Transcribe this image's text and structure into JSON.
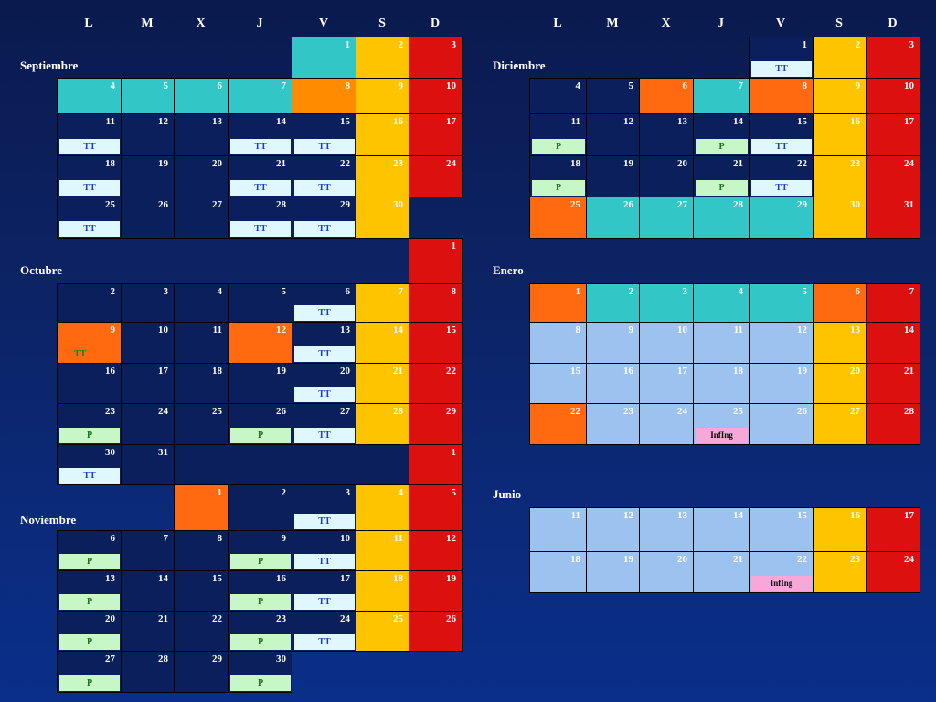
{
  "day_headers": [
    "L",
    "M",
    "X",
    "J",
    "V",
    "S",
    "D"
  ],
  "palette": {
    "navy": "#0a1f5c",
    "teal": "#33c6c6",
    "orange": "#ff6a10",
    "amber": "#ff8c00",
    "yellow": "#ffc400",
    "red": "#dd1010",
    "light": "#9cc3f0"
  },
  "left": {
    "months": [
      {
        "label": "Septiembre",
        "row": 1
      },
      {
        "label": "Octubre",
        "row": 6
      },
      {
        "label": "Noviembre",
        "row": 12
      }
    ],
    "rows": [
      [
        null,
        null,
        null,
        null,
        {
          "d": "1",
          "c": "teal"
        },
        {
          "d": "2",
          "c": "yellow"
        },
        {
          "d": "3",
          "c": "red"
        }
      ],
      [
        {
          "d": "4",
          "c": "teal"
        },
        {
          "d": "5",
          "c": "teal"
        },
        {
          "d": "6",
          "c": "teal"
        },
        {
          "d": "7",
          "c": "teal"
        },
        {
          "d": "8",
          "c": "amber"
        },
        {
          "d": "9",
          "c": "yellow"
        },
        {
          "d": "10",
          "c": "red"
        }
      ],
      [
        {
          "d": "11",
          "c": "navy",
          "t": "TT"
        },
        {
          "d": "12",
          "c": "navy"
        },
        {
          "d": "13",
          "c": "navy"
        },
        {
          "d": "14",
          "c": "navy",
          "t": "TT"
        },
        {
          "d": "15",
          "c": "navy",
          "t": "TT"
        },
        {
          "d": "16",
          "c": "yellow"
        },
        {
          "d": "17",
          "c": "red"
        }
      ],
      [
        {
          "d": "18",
          "c": "navy",
          "t": "TT"
        },
        {
          "d": "19",
          "c": "navy"
        },
        {
          "d": "20",
          "c": "navy"
        },
        {
          "d": "21",
          "c": "navy",
          "t": "TT"
        },
        {
          "d": "22",
          "c": "navy",
          "t": "TT"
        },
        {
          "d": "23",
          "c": "yellow"
        },
        {
          "d": "24",
          "c": "red"
        }
      ],
      [
        {
          "d": "25",
          "c": "navy",
          "t": "TT"
        },
        {
          "d": "26",
          "c": "navy"
        },
        {
          "d": "27",
          "c": "navy"
        },
        {
          "d": "28",
          "c": "navy",
          "t": "TT"
        },
        {
          "d": "29",
          "c": "navy",
          "t": "TT"
        },
        {
          "d": "30",
          "c": "yellow"
        },
        null
      ],
      [
        null,
        null,
        null,
        null,
        null,
        null,
        {
          "d": "1",
          "c": "red"
        }
      ],
      [
        {
          "d": "2",
          "c": "navy"
        },
        {
          "d": "3",
          "c": "navy"
        },
        {
          "d": "4",
          "c": "navy"
        },
        {
          "d": "5",
          "c": "navy"
        },
        {
          "d": "6",
          "c": "navy",
          "t": "TT"
        },
        {
          "d": "7",
          "c": "yellow"
        },
        {
          "d": "8",
          "c": "red"
        }
      ],
      [
        {
          "d": "9",
          "c": "orange",
          "t": "TT",
          "tt": "X"
        },
        {
          "d": "10",
          "c": "navy"
        },
        {
          "d": "11",
          "c": "navy"
        },
        {
          "d": "12",
          "c": "orange"
        },
        {
          "d": "13",
          "c": "navy",
          "t": "TT"
        },
        {
          "d": "14",
          "c": "yellow"
        },
        {
          "d": "15",
          "c": "red"
        }
      ],
      [
        {
          "d": "16",
          "c": "navy"
        },
        {
          "d": "17",
          "c": "navy"
        },
        {
          "d": "18",
          "c": "navy"
        },
        {
          "d": "19",
          "c": "navy"
        },
        {
          "d": "20",
          "c": "navy",
          "t": "TT"
        },
        {
          "d": "21",
          "c": "yellow"
        },
        {
          "d": "22",
          "c": "red"
        }
      ],
      [
        {
          "d": "23",
          "c": "navy",
          "t": "P"
        },
        {
          "d": "24",
          "c": "navy"
        },
        {
          "d": "25",
          "c": "navy"
        },
        {
          "d": "26",
          "c": "navy",
          "t": "P"
        },
        {
          "d": "27",
          "c": "navy",
          "t": "TT"
        },
        {
          "d": "28",
          "c": "yellow"
        },
        {
          "d": "29",
          "c": "red"
        }
      ],
      [
        {
          "d": "30",
          "c": "navy",
          "t": "TT"
        },
        {
          "d": "31",
          "c": "navy"
        },
        {
          "span": 4,
          "c": "navy"
        },
        null,
        null,
        null,
        {
          "d": "1",
          "c": "red"
        }
      ],
      [
        null,
        null,
        {
          "d": "1",
          "c": "orange"
        },
        {
          "d": "2",
          "c": "navy"
        },
        {
          "d": "3",
          "c": "navy",
          "t": "TT"
        },
        {
          "d": "4",
          "c": "yellow"
        },
        {
          "d": "5",
          "c": "red"
        }
      ],
      [
        {
          "d": "6",
          "c": "navy",
          "t": "P"
        },
        {
          "d": "7",
          "c": "navy"
        },
        {
          "d": "8",
          "c": "navy"
        },
        {
          "d": "9",
          "c": "navy",
          "t": "P"
        },
        {
          "d": "10",
          "c": "navy",
          "t": "TT"
        },
        {
          "d": "11",
          "c": "yellow"
        },
        {
          "d": "12",
          "c": "red"
        }
      ],
      [
        {
          "d": "13",
          "c": "navy",
          "t": "P"
        },
        {
          "d": "14",
          "c": "navy"
        },
        {
          "d": "15",
          "c": "navy"
        },
        {
          "d": "16",
          "c": "navy",
          "t": "P"
        },
        {
          "d": "17",
          "c": "navy",
          "t": "TT"
        },
        {
          "d": "18",
          "c": "yellow"
        },
        {
          "d": "19",
          "c": "red"
        }
      ],
      [
        {
          "d": "20",
          "c": "navy",
          "t": "P"
        },
        {
          "d": "21",
          "c": "navy"
        },
        {
          "d": "22",
          "c": "navy"
        },
        {
          "d": "23",
          "c": "navy",
          "t": "P"
        },
        {
          "d": "24",
          "c": "navy",
          "t": "TT"
        },
        {
          "d": "25",
          "c": "yellow"
        },
        {
          "d": "26",
          "c": "red"
        }
      ],
      [
        {
          "d": "27",
          "c": "navy",
          "t": "P"
        },
        {
          "d": "28",
          "c": "navy"
        },
        {
          "d": "29",
          "c": "navy"
        },
        {
          "d": "30",
          "c": "navy",
          "t": "P"
        },
        null,
        null,
        null
      ]
    ]
  },
  "right": {
    "months": [
      {
        "label": "Diciembre",
        "row": 1
      },
      {
        "label": "Enero",
        "row": 6
      },
      {
        "label": "Junio",
        "row": 11
      }
    ],
    "rows": [
      [
        null,
        null,
        null,
        null,
        {
          "d": "1",
          "c": "navy",
          "t": "TT"
        },
        {
          "d": "2",
          "c": "yellow"
        },
        {
          "d": "3",
          "c": "red"
        }
      ],
      [
        {
          "d": "4",
          "c": "navy"
        },
        {
          "d": "5",
          "c": "navy"
        },
        {
          "d": "6",
          "c": "orange"
        },
        {
          "d": "7",
          "c": "teal"
        },
        {
          "d": "8",
          "c": "orange"
        },
        {
          "d": "9",
          "c": "yellow"
        },
        {
          "d": "10",
          "c": "red"
        }
      ],
      [
        {
          "d": "11",
          "c": "navy",
          "t": "P"
        },
        {
          "d": "12",
          "c": "navy"
        },
        {
          "d": "13",
          "c": "navy"
        },
        {
          "d": "14",
          "c": "navy",
          "t": "P"
        },
        {
          "d": "15",
          "c": "navy",
          "t": "TT"
        },
        {
          "d": "16",
          "c": "yellow"
        },
        {
          "d": "17",
          "c": "red"
        }
      ],
      [
        {
          "d": "18",
          "c": "navy",
          "t": "P"
        },
        {
          "d": "19",
          "c": "navy"
        },
        {
          "d": "20",
          "c": "navy"
        },
        {
          "d": "21",
          "c": "navy",
          "t": "P"
        },
        {
          "d": "22",
          "c": "navy",
          "t": "TT"
        },
        {
          "d": "23",
          "c": "yellow"
        },
        {
          "d": "24",
          "c": "red"
        }
      ],
      [
        {
          "d": "25",
          "c": "orange"
        },
        {
          "d": "26",
          "c": "teal"
        },
        {
          "d": "27",
          "c": "teal"
        },
        {
          "d": "28",
          "c": "teal"
        },
        {
          "d": "29",
          "c": "teal"
        },
        {
          "d": "30",
          "c": "yellow"
        },
        {
          "d": "31",
          "c": "red"
        }
      ],
      [
        null,
        null,
        null,
        null,
        null,
        null,
        null
      ],
      [
        {
          "d": "1",
          "c": "orange"
        },
        {
          "d": "2",
          "c": "teal"
        },
        {
          "d": "3",
          "c": "teal"
        },
        {
          "d": "4",
          "c": "teal"
        },
        {
          "d": "5",
          "c": "teal"
        },
        {
          "d": "6",
          "c": "orange"
        },
        {
          "d": "7",
          "c": "red"
        }
      ],
      [
        {
          "d": "8",
          "c": "light"
        },
        {
          "d": "9",
          "c": "light"
        },
        {
          "d": "10",
          "c": "light"
        },
        {
          "d": "11",
          "c": "light"
        },
        {
          "d": "12",
          "c": "light"
        },
        {
          "d": "13",
          "c": "yellow"
        },
        {
          "d": "14",
          "c": "red"
        }
      ],
      [
        {
          "d": "15",
          "c": "light"
        },
        {
          "d": "16",
          "c": "light"
        },
        {
          "d": "17",
          "c": "light"
        },
        {
          "d": "18",
          "c": "light"
        },
        {
          "d": "19",
          "c": "light"
        },
        {
          "d": "20",
          "c": "yellow"
        },
        {
          "d": "21",
          "c": "red"
        }
      ],
      [
        {
          "d": "22",
          "c": "orange"
        },
        {
          "d": "23",
          "c": "light"
        },
        {
          "d": "24",
          "c": "light"
        },
        {
          "d": "25",
          "c": "light",
          "t": "InfIng"
        },
        {
          "d": "26",
          "c": "light"
        },
        {
          "d": "27",
          "c": "yellow"
        },
        {
          "d": "28",
          "c": "red"
        }
      ],
      [
        null,
        null,
        null,
        null,
        null,
        null,
        null
      ],
      [
        null,
        null,
        null,
        null,
        null,
        null,
        null
      ],
      [
        {
          "d": "11",
          "c": "light"
        },
        {
          "d": "12",
          "c": "light"
        },
        {
          "d": "13",
          "c": "light"
        },
        {
          "d": "14",
          "c": "light"
        },
        {
          "d": "15",
          "c": "light"
        },
        {
          "d": "16",
          "c": "yellow"
        },
        {
          "d": "17",
          "c": "red"
        }
      ],
      [
        {
          "d": "18",
          "c": "light"
        },
        {
          "d": "19",
          "c": "light"
        },
        {
          "d": "20",
          "c": "light"
        },
        {
          "d": "21",
          "c": "light"
        },
        {
          "d": "22",
          "c": "light",
          "t": "InfIng"
        },
        {
          "d": "23",
          "c": "yellow"
        },
        {
          "d": "24",
          "c": "red"
        }
      ]
    ]
  }
}
